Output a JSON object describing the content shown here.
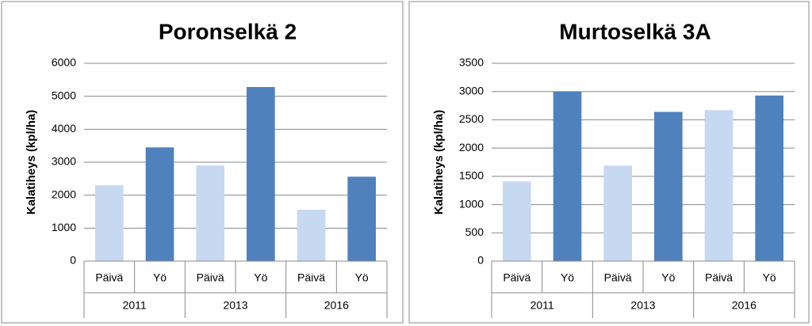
{
  "chart_data": [
    {
      "type": "bar",
      "title": "Poronselkä 2",
      "ylabel": "Kalatiheys (kpl/ha)",
      "categories": [
        "Päivä",
        "Yö",
        "Päivä",
        "Yö",
        "Päivä",
        "Yö"
      ],
      "groups": [
        "2011",
        "2013",
        "2016"
      ],
      "values": [
        2300,
        3450,
        2900,
        5280,
        1560,
        2560
      ],
      "colors": [
        "#c6d9f1",
        "#4f81bd",
        "#c6d9f1",
        "#4f81bd",
        "#c6d9f1",
        "#4f81bd"
      ],
      "ylim": [
        0,
        6000
      ],
      "yticks": [
        0,
        1000,
        2000,
        3000,
        4000,
        5000,
        6000
      ],
      "grid": true
    },
    {
      "type": "bar",
      "title": "Murtoselkä 3A",
      "ylabel": "Kalatiheys (kpl/ha)",
      "categories": [
        "Päivä",
        "Yö",
        "Päivä",
        "Yö",
        "Päivä",
        "Yö"
      ],
      "groups": [
        "2011",
        "2013",
        "2016"
      ],
      "values": [
        1410,
        3000,
        1690,
        2640,
        2670,
        2930
      ],
      "colors": [
        "#c6d9f1",
        "#4f81bd",
        "#c6d9f1",
        "#4f81bd",
        "#c6d9f1",
        "#4f81bd"
      ],
      "ylim": [
        0,
        3500
      ],
      "yticks": [
        0,
        500,
        1000,
        1500,
        2000,
        2500,
        3000,
        3500
      ],
      "grid": true
    }
  ]
}
